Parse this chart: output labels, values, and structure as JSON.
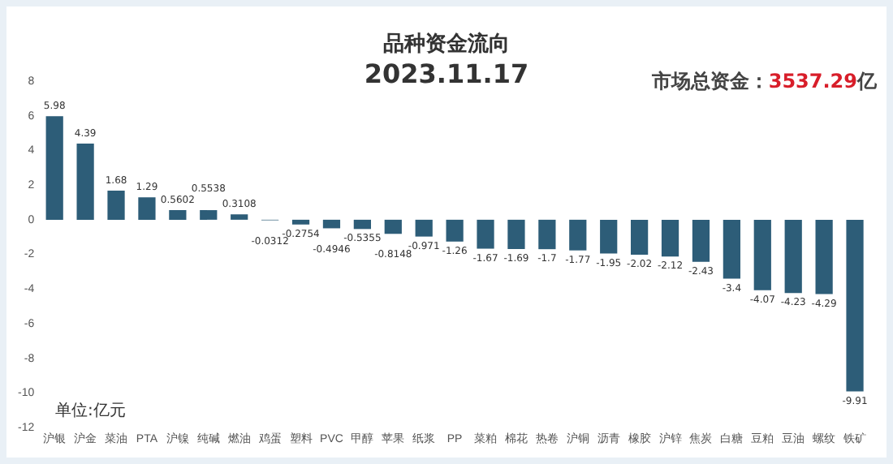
{
  "chart_data": {
    "type": "bar",
    "title": "品种资金流向",
    "subtitle": "2023.11.17",
    "annotations": [
      "市场总资金：3537.29亿",
      "单位:亿元"
    ],
    "categories": [
      "沪银",
      "沪金",
      "菜油",
      "PTA",
      "沪镍",
      "纯碱",
      "燃油",
      "鸡蛋",
      "塑料",
      "PVC",
      "甲醇",
      "苹果",
      "纸浆",
      "PP",
      "菜粕",
      "棉花",
      "热卷",
      "沪铜",
      "沥青",
      "橡胶",
      "沪锌",
      "焦炭",
      "白糖",
      "豆粕",
      "豆油",
      "螺纹",
      "铁矿"
    ],
    "values": [
      5.98,
      4.39,
      1.68,
      1.29,
      0.5602,
      0.5538,
      0.3108,
      -0.0312,
      -0.2754,
      -0.4946,
      -0.5355,
      -0.8148,
      -0.971,
      -1.26,
      -1.67,
      -1.69,
      -1.7,
      -1.77,
      -1.95,
      -2.02,
      -2.12,
      -2.43,
      -3.4,
      -4.07,
      -4.23,
      -4.29,
      -9.91
    ],
    "color": "#2d5d78",
    "ylim": [
      -12,
      8
    ],
    "yticks": [
      -12,
      -10,
      -8,
      -6,
      -4,
      -2,
      0,
      2,
      4,
      6,
      8
    ],
    "grid": false,
    "legend": false,
    "data_labels": true
  }
}
